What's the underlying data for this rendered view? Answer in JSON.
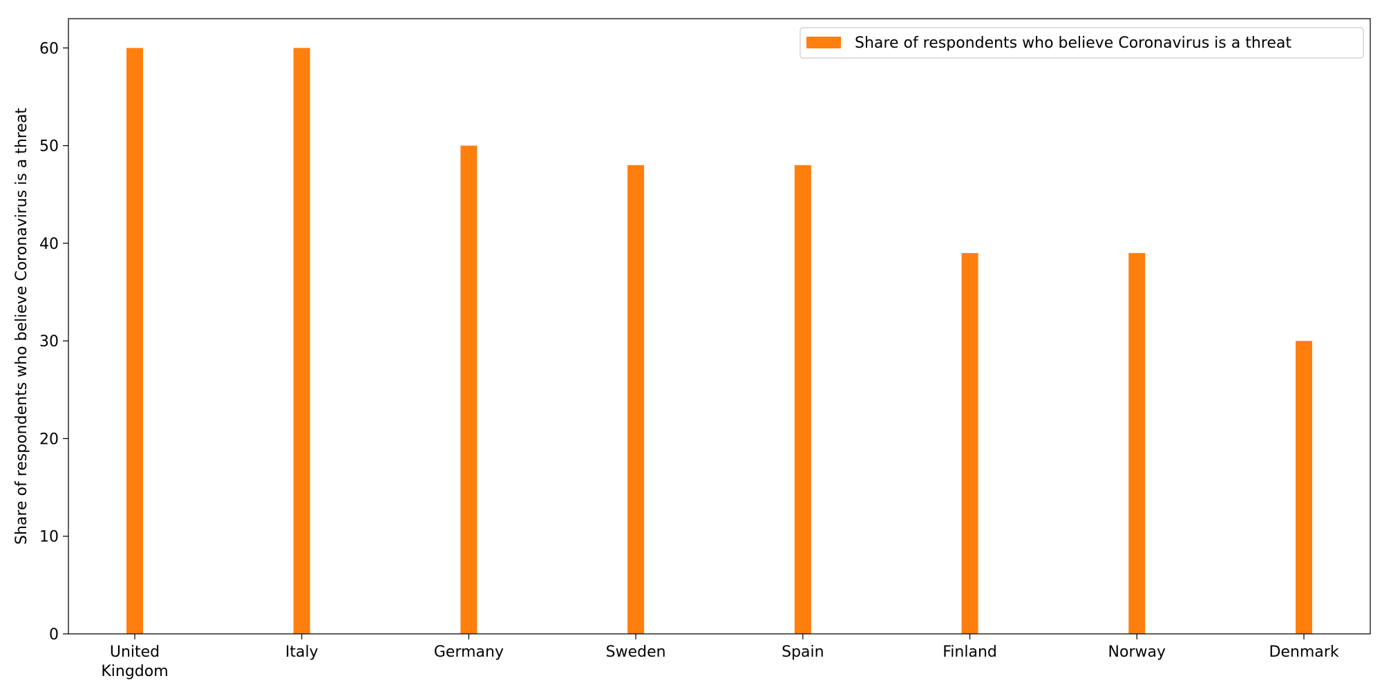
{
  "chart_data": {
    "type": "bar",
    "title": "",
    "xlabel": "",
    "ylabel": "Share of respondents who believe Coronavirus is a threat",
    "categories": [
      "United\nKingdom",
      "Italy",
      "Germany",
      "Sweden",
      "Spain",
      "Finland",
      "Norway",
      "Denmark"
    ],
    "series": [
      {
        "name": "Share of respondents who believe Coronavirus is a threat",
        "values": [
          60,
          60,
          50,
          48,
          48,
          39,
          39,
          30
        ],
        "color": "#ff7f0e"
      }
    ],
    "ylim": [
      0,
      63
    ],
    "yticks": [
      0,
      10,
      20,
      30,
      40,
      50,
      60
    ],
    "grid": false,
    "legend": "top-right"
  }
}
